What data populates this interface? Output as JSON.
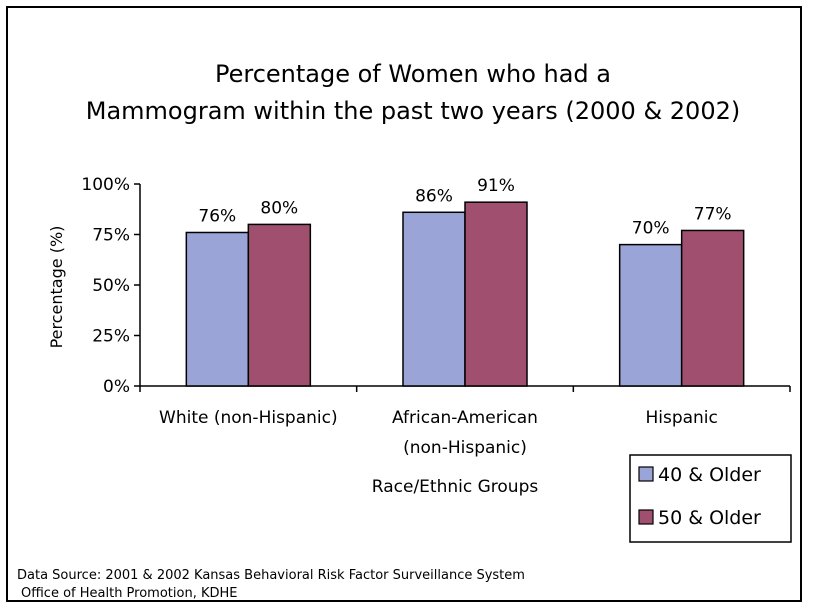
{
  "chart_data": {
    "type": "bar",
    "title_lines": [
      "Percentage of Women who had a",
      "Mammogram within the past two years (2000 & 2002)"
    ],
    "categories": [
      [
        "White (non-Hispanic)"
      ],
      [
        "African-American",
        "(non-Hispanic)"
      ],
      [
        "Hispanic"
      ]
    ],
    "series": [
      {
        "name": "40 & Older",
        "values": [
          76,
          86,
          70
        ],
        "labels": [
          "76%",
          "86%",
          "70%"
        ],
        "color": "#9aa4d6"
      },
      {
        "name": "50 & Older",
        "values": [
          80,
          91,
          77
        ],
        "labels": [
          "80%",
          "91%",
          "77%"
        ],
        "color": "#a0506e"
      }
    ],
    "ylim": [
      0,
      100
    ],
    "ytick_values": [
      0,
      25,
      50,
      75,
      100
    ],
    "ytick_labels": [
      "0%",
      "25%",
      "50%",
      "75%",
      "100%"
    ],
    "ylabel": "Percentage (%)",
    "xlabel": "Race/Ethnic Groups",
    "grid": false,
    "legend_position": "bottom-right"
  },
  "source": {
    "line1": "Data Source: 2001 & 2002 Kansas Behavioral Risk Factor Surveillance System",
    "line2": "Office of Health Promotion, KDHE"
  }
}
